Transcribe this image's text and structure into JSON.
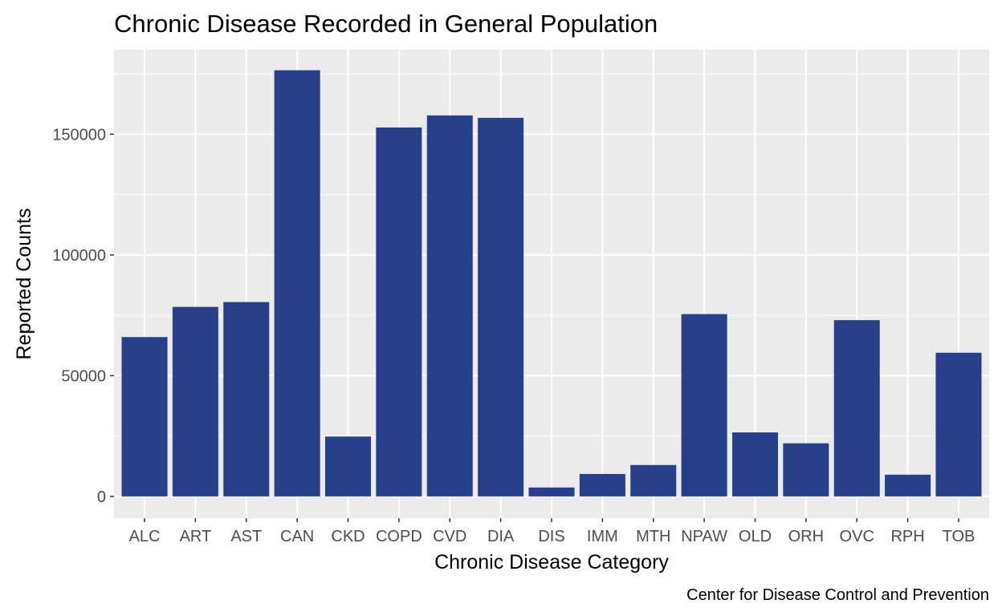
{
  "chart_data": {
    "type": "bar",
    "title": "Chronic Disease Recorded in General Population",
    "xlabel": "Chronic Disease Category",
    "ylabel": "Reported Counts",
    "caption": "Center for Disease Control and Prevention",
    "categories": [
      "ALC",
      "ART",
      "AST",
      "CAN",
      "CKD",
      "COPD",
      "CVD",
      "DIA",
      "DIS",
      "IMM",
      "MTH",
      "NPAW",
      "OLD",
      "ORH",
      "OVC",
      "RPH",
      "TOB"
    ],
    "values": [
      66000,
      78500,
      80500,
      176500,
      24800,
      152800,
      157800,
      156800,
      3700,
      9300,
      13000,
      75500,
      26500,
      22000,
      73000,
      9000,
      59500
    ],
    "yticks": [
      0,
      50000,
      100000,
      150000
    ],
    "ylim": [
      -9000,
      185000
    ],
    "grid": true,
    "bar_color": "#283f8a",
    "panel_color": "#ebebeb"
  }
}
